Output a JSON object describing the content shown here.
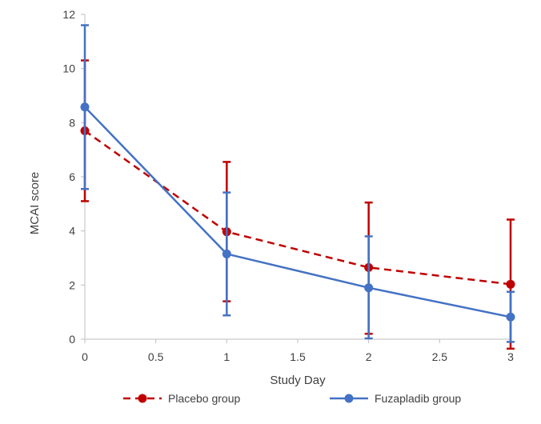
{
  "chart_data": {
    "type": "line",
    "title": "",
    "xlabel": "Study Day",
    "ylabel": "MCAI score",
    "xlim": [
      0,
      3
    ],
    "ylim": [
      0,
      12
    ],
    "x_ticks": [
      "0",
      "0.5",
      "1",
      "1.5",
      "2",
      "2.5",
      "3"
    ],
    "y_ticks": [
      "0",
      "2",
      "4",
      "6",
      "8",
      "10",
      "12"
    ],
    "grid": false,
    "legend_position": "bottom",
    "series": [
      {
        "name": "Placebo group",
        "color": "#c00000",
        "line_style": "dashed",
        "marker": "circle",
        "x": [
          0,
          1,
          2,
          3
        ],
        "y": [
          7.7,
          3.97,
          2.65,
          2.03
        ],
        "error_low": [
          5.1,
          1.4,
          0.2,
          -0.35
        ],
        "error_high": [
          10.3,
          6.55,
          5.05,
          4.42
        ]
      },
      {
        "name": "Fuzapladib group",
        "color": "#4472c4",
        "line_style": "solid",
        "marker": "circle",
        "x": [
          0,
          1,
          2,
          3
        ],
        "y": [
          8.58,
          3.15,
          1.9,
          0.82
        ],
        "error_low": [
          5.55,
          0.88,
          0.03,
          -0.1
        ],
        "error_high": [
          11.6,
          5.42,
          3.8,
          1.75
        ]
      }
    ]
  }
}
